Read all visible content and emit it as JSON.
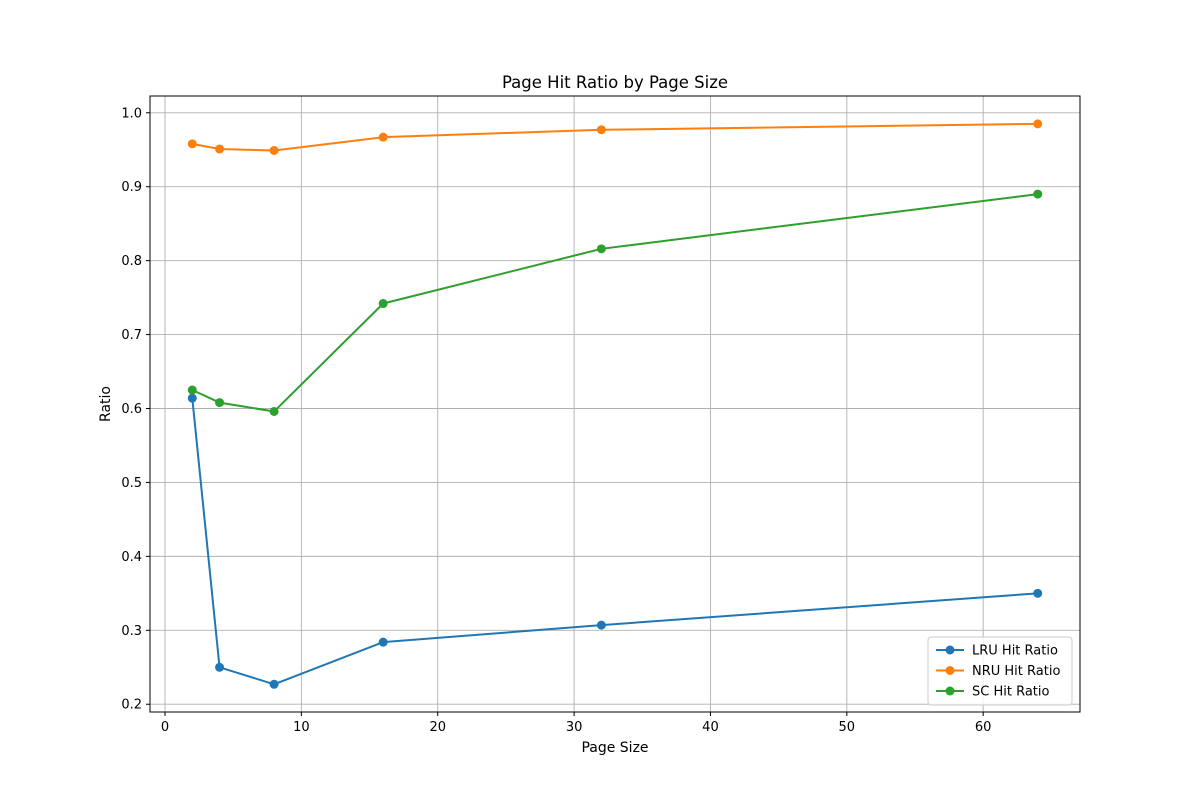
{
  "chart_data": {
    "type": "line",
    "title": "Page Hit Ratio by Page Size",
    "xlabel": "Page Size",
    "ylabel": "Ratio",
    "x": [
      2,
      4,
      8,
      16,
      32,
      64
    ],
    "xlim": [
      -1.1,
      67.1
    ],
    "ylim": [
      0.1895,
      1.0227
    ],
    "xticks": [
      0,
      10,
      20,
      30,
      40,
      50,
      60
    ],
    "yticks": [
      0.2,
      0.3,
      0.4,
      0.5,
      0.6,
      0.7,
      0.8,
      0.9,
      1.0
    ],
    "xtick_labels": [
      "0",
      "10",
      "20",
      "30",
      "40",
      "50",
      "60"
    ],
    "ytick_labels": [
      "0.2",
      "0.3",
      "0.4",
      "0.5",
      "0.6",
      "0.7",
      "0.8",
      "0.9",
      "1.0"
    ],
    "grid": true,
    "legend_position": "bottom-right",
    "series": [
      {
        "name": "LRU Hit Ratio",
        "color": "#1f77b4",
        "values": [
          0.614,
          0.25,
          0.227,
          0.284,
          0.307,
          0.35
        ]
      },
      {
        "name": "NRU Hit Ratio",
        "color": "#ff7f0e",
        "values": [
          0.958,
          0.951,
          0.949,
          0.967,
          0.977,
          0.985
        ]
      },
      {
        "name": "SC Hit Ratio",
        "color": "#2ca02c",
        "values": [
          0.625,
          0.608,
          0.596,
          0.742,
          0.816,
          0.89
        ]
      }
    ]
  }
}
